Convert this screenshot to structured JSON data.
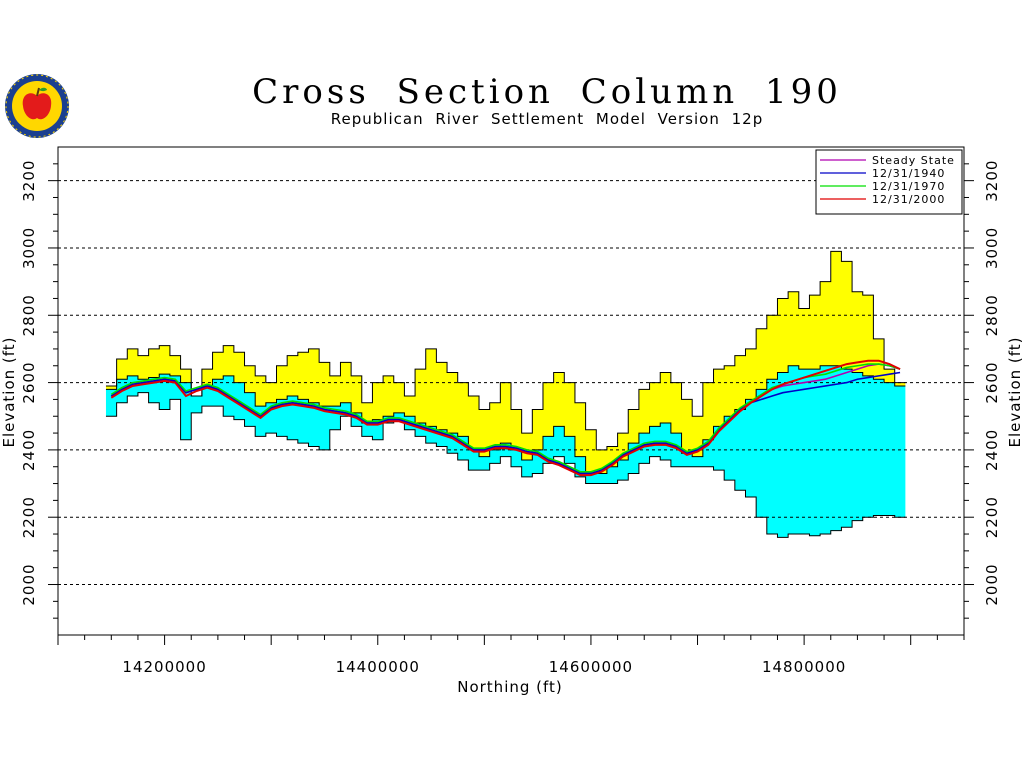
{
  "header": {
    "title": "Cross Section Column 190",
    "subtitle": "Republican River Settlement Model Version 12p"
  },
  "logo": {
    "icon": "apple-seal-icon",
    "colors": {
      "ring": "#1b3f8f",
      "fill": "#ffd700",
      "apple": "#e31b1b"
    }
  },
  "chart_data": {
    "type": "area",
    "title": "Cross Section Column 190",
    "subtitle": "Republican River Settlement Model Version 12p",
    "xlabel": "Northing (ft)",
    "ylabel": "Elevation (ft)",
    "xlim": [
      14100000,
      14950000
    ],
    "ylim": [
      1850,
      3300
    ],
    "xticks": [
      14200000,
      14400000,
      14600000,
      14800000
    ],
    "xtick_labels": [
      "14200000",
      "14400000",
      "14600000",
      "14800000"
    ],
    "yticks": [
      2000,
      2200,
      2400,
      2600,
      2800,
      3000,
      3200
    ],
    "ytick_labels": [
      "2000",
      "2200",
      "2400",
      "2600",
      "2800",
      "3000",
      "3200"
    ],
    "grid": "horizontal dashed",
    "legend_position": "top-right",
    "colors": {
      "upper_layer": "#ffff00",
      "lower_layer": "#00ffff",
      "outline": "#000000"
    },
    "layers": {
      "x": [
        14150000,
        14160000,
        14170000,
        14180000,
        14190000,
        14200000,
        14210000,
        14220000,
        14230000,
        14240000,
        14250000,
        14260000,
        14270000,
        14280000,
        14290000,
        14300000,
        14310000,
        14320000,
        14330000,
        14340000,
        14350000,
        14360000,
        14370000,
        14380000,
        14390000,
        14400000,
        14410000,
        14420000,
        14430000,
        14440000,
        14450000,
        14460000,
        14470000,
        14480000,
        14490000,
        14500000,
        14510000,
        14520000,
        14530000,
        14540000,
        14550000,
        14560000,
        14570000,
        14580000,
        14590000,
        14600000,
        14610000,
        14620000,
        14630000,
        14640000,
        14650000,
        14660000,
        14670000,
        14680000,
        14690000,
        14700000,
        14710000,
        14720000,
        14730000,
        14740000,
        14750000,
        14760000,
        14770000,
        14780000,
        14790000,
        14800000,
        14810000,
        14820000,
        14830000,
        14840000,
        14850000,
        14860000,
        14870000,
        14880000,
        14890000
      ],
      "top": [
        2590,
        2670,
        2700,
        2680,
        2700,
        2710,
        2680,
        2640,
        2560,
        2640,
        2690,
        2710,
        2690,
        2650,
        2620,
        2600,
        2650,
        2680,
        2690,
        2700,
        2660,
        2620,
        2660,
        2620,
        2540,
        2600,
        2620,
        2600,
        2560,
        2640,
        2700,
        2660,
        2630,
        2600,
        2560,
        2520,
        2540,
        2600,
        2520,
        2450,
        2520,
        2600,
        2630,
        2600,
        2540,
        2460,
        2400,
        2410,
        2450,
        2520,
        2580,
        2600,
        2630,
        2600,
        2550,
        2500,
        2600,
        2640,
        2650,
        2680,
        2700,
        2760,
        2800,
        2850,
        2870,
        2820,
        2860,
        2900,
        2990,
        2960,
        2870,
        2860,
        2730,
        2640,
        2600
      ],
      "mid": [
        2580,
        2610,
        2620,
        2610,
        2615,
        2625,
        2620,
        2600,
        2560,
        2590,
        2610,
        2620,
        2600,
        2570,
        2530,
        2540,
        2550,
        2560,
        2550,
        2540,
        2530,
        2530,
        2540,
        2510,
        2480,
        2490,
        2500,
        2510,
        2500,
        2480,
        2470,
        2460,
        2450,
        2440,
        2400,
        2380,
        2400,
        2420,
        2400,
        2370,
        2400,
        2440,
        2470,
        2440,
        2380,
        2330,
        2330,
        2350,
        2370,
        2420,
        2450,
        2470,
        2480,
        2450,
        2390,
        2380,
        2430,
        2470,
        2500,
        2520,
        2550,
        2580,
        2610,
        2630,
        2650,
        2640,
        2640,
        2650,
        2650,
        2640,
        2630,
        2620,
        2610,
        2600,
        2590
      ],
      "bottom": [
        2500,
        2540,
        2560,
        2570,
        2540,
        2520,
        2550,
        2430,
        2510,
        2530,
        2530,
        2500,
        2490,
        2470,
        2440,
        2450,
        2440,
        2430,
        2420,
        2410,
        2400,
        2460,
        2500,
        2470,
        2440,
        2430,
        2480,
        2490,
        2460,
        2440,
        2420,
        2410,
        2390,
        2370,
        2340,
        2340,
        2360,
        2380,
        2350,
        2320,
        2330,
        2360,
        2380,
        2360,
        2320,
        2300,
        2300,
        2300,
        2310,
        2330,
        2360,
        2380,
        2370,
        2350,
        2350,
        2350,
        2350,
        2340,
        2310,
        2280,
        2260,
        2200,
        2150,
        2140,
        2150,
        2150,
        2145,
        2150,
        2160,
        2170,
        2190,
        2200,
        2205,
        2205,
        2200
      ]
    },
    "series": [
      {
        "name": "Steady State",
        "color": "#b100b1",
        "values": [
          2560,
          2580,
          2595,
          2600,
          2605,
          2610,
          2605,
          2570,
          2580,
          2590,
          2580,
          2560,
          2540,
          2520,
          2500,
          2525,
          2535,
          2540,
          2535,
          2530,
          2520,
          2515,
          2510,
          2500,
          2480,
          2480,
          2490,
          2490,
          2480,
          2470,
          2460,
          2450,
          2440,
          2420,
          2400,
          2400,
          2410,
          2410,
          2405,
          2395,
          2390,
          2370,
          2360,
          2345,
          2330,
          2330,
          2340,
          2360,
          2385,
          2400,
          2415,
          2420,
          2420,
          2410,
          2390,
          2400,
          2420,
          2460,
          2490,
          2520,
          2540,
          2560,
          2580,
          2590,
          2595,
          2600,
          2605,
          2610,
          2620,
          2630,
          2640,
          2650,
          2655,
          2650,
          2640
        ]
      },
      {
        "name": "12/31/1940",
        "color": "#0000c8",
        "values": [
          2560,
          2580,
          2595,
          2600,
          2605,
          2610,
          2605,
          2570,
          2580,
          2590,
          2580,
          2560,
          2540,
          2520,
          2500,
          2525,
          2535,
          2540,
          2535,
          2530,
          2520,
          2515,
          2510,
          2500,
          2480,
          2480,
          2490,
          2490,
          2480,
          2470,
          2460,
          2450,
          2440,
          2420,
          2400,
          2400,
          2410,
          2410,
          2405,
          2395,
          2390,
          2370,
          2360,
          2345,
          2330,
          2330,
          2340,
          2360,
          2385,
          2400,
          2415,
          2420,
          2420,
          2410,
          2390,
          2400,
          2420,
          2460,
          2490,
          2520,
          2540,
          2550,
          2560,
          2570,
          2575,
          2580,
          2585,
          2590,
          2595,
          2600,
          2610,
          2615,
          2620,
          2625,
          2630
        ]
      },
      {
        "name": "12/31/1970",
        "color": "#00e000",
        "values": [
          2565,
          2585,
          2600,
          2605,
          2610,
          2615,
          2610,
          2575,
          2585,
          2595,
          2585,
          2565,
          2545,
          2525,
          2505,
          2530,
          2540,
          2545,
          2540,
          2535,
          2525,
          2520,
          2515,
          2505,
          2485,
          2485,
          2495,
          2495,
          2485,
          2475,
          2465,
          2455,
          2445,
          2425,
          2405,
          2405,
          2415,
          2415,
          2410,
          2400,
          2395,
          2375,
          2365,
          2350,
          2335,
          2335,
          2345,
          2365,
          2390,
          2405,
          2420,
          2425,
          2425,
          2415,
          2395,
          2405,
          2425,
          2465,
          2495,
          2525,
          2545,
          2565,
          2585,
          2595,
          2605,
          2615,
          2620,
          2625,
          2635,
          2645,
          2650,
          2655,
          2655,
          2650,
          2640
        ]
      },
      {
        "name": "12/31/2000",
        "color": "#e00000",
        "values": [
          2555,
          2575,
          2590,
          2595,
          2600,
          2605,
          2600,
          2560,
          2575,
          2585,
          2575,
          2555,
          2535,
          2515,
          2495,
          2520,
          2530,
          2535,
          2530,
          2525,
          2515,
          2510,
          2505,
          2495,
          2475,
          2475,
          2485,
          2485,
          2475,
          2465,
          2455,
          2445,
          2435,
          2415,
          2395,
          2395,
          2405,
          2405,
          2400,
          2390,
          2385,
          2365,
          2355,
          2340,
          2325,
          2325,
          2335,
          2355,
          2380,
          2395,
          2410,
          2415,
          2415,
          2405,
          2385,
          2395,
          2415,
          2455,
          2485,
          2515,
          2540,
          2560,
          2580,
          2595,
          2605,
          2615,
          2625,
          2635,
          2645,
          2655,
          2660,
          2665,
          2665,
          2655,
          2640
        ]
      }
    ]
  }
}
